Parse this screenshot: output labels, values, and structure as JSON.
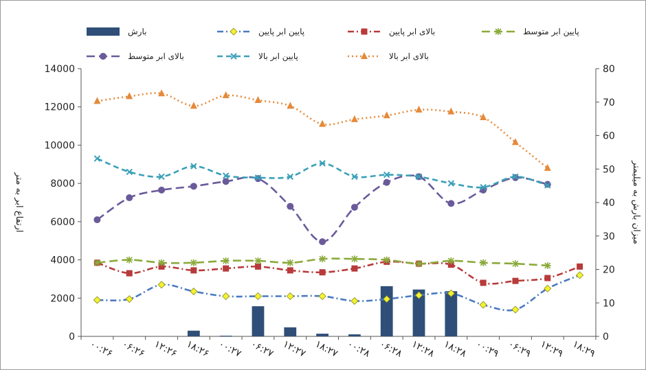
{
  "chart_data": {
    "type": "line",
    "categories": [
      "۰۰:۲۶",
      "۰۶:۲۶",
      "۱۲:۲۶",
      "۱۸:۲۶",
      "۰۰:۲۷",
      "۰۶:۲۷",
      "۱۲:۲۷",
      "۱۸:۲۷",
      "۰۰:۲۸",
      "۰۶:۲۸",
      "۱۲:۲۸",
      "۱۸:۲۸",
      "۰۰:۲۹",
      "۰۶:۲۹",
      "۱۲:۲۹",
      "۱۸:۲۹"
    ],
    "ylabel": "ارتفاع ابر به متر",
    "y2label": "میزان بارش به میلیمتر",
    "ylim": [
      0,
      14000
    ],
    "y2lim": [
      0,
      80
    ],
    "yticks": [
      "0",
      "2000",
      "4000",
      "6000",
      "8000",
      "10000",
      "12000",
      "14000"
    ],
    "y2ticks": [
      "0",
      "10",
      "20",
      "30",
      "40",
      "50",
      "60",
      "70",
      "80"
    ],
    "grid": false,
    "legend_position": "top",
    "series": [
      {
        "name": "بارش",
        "kind": "bar",
        "axis": "right",
        "color": "#2f4f78",
        "values": [
          null,
          null,
          null,
          1.7,
          0.2,
          9.0,
          2.7,
          0.8,
          0.6,
          15.0,
          14.0,
          13.5,
          null,
          null,
          null,
          null
        ]
      },
      {
        "name": "پایین ابر پایین",
        "kind": "line",
        "axis": "left",
        "color": "#4a7ac0",
        "dash": "dashdot",
        "marker": "diamond",
        "marker_fill": "#f2f230",
        "values": [
          1900,
          1950,
          2700,
          2350,
          2100,
          2100,
          2100,
          2100,
          1850,
          1950,
          2150,
          2250,
          1650,
          1400,
          2500,
          3200
        ]
      },
      {
        "name": "بالای ابر پایین",
        "kind": "line",
        "axis": "left",
        "color": "#b83a3a",
        "dash": "dashdot",
        "marker": "square",
        "values": [
          3850,
          3300,
          3650,
          3450,
          3550,
          3650,
          3450,
          3350,
          3550,
          3900,
          3800,
          3750,
          2800,
          2900,
          3050,
          3650
        ]
      },
      {
        "name": "پایین ابر متوسط",
        "kind": "line",
        "axis": "left",
        "color": "#8aaa3a",
        "dash": "longdash",
        "marker": "star",
        "values": [
          3850,
          4000,
          3850,
          3850,
          3950,
          3950,
          3850,
          4050,
          4050,
          4000,
          3800,
          3950,
          3850,
          3800,
          3700,
          null
        ]
      },
      {
        "name": "بالای ابر متوسط",
        "kind": "line",
        "axis": "left",
        "color": "#6a5a9a",
        "dash": "longdash",
        "marker": "circle",
        "values": [
          6100,
          7250,
          7650,
          7850,
          8100,
          8250,
          6800,
          4950,
          6750,
          8050,
          8350,
          6950,
          7650,
          8300,
          7950,
          null
        ]
      },
      {
        "name": "پایین ابر بالا",
        "kind": "line",
        "axis": "left",
        "color": "#3aa0b8",
        "dash": "dash",
        "marker": "x",
        "values": [
          9300,
          8600,
          8350,
          8900,
          8400,
          8300,
          8350,
          9050,
          8350,
          8450,
          8350,
          8000,
          7800,
          8350,
          7900,
          null
        ]
      },
      {
        "name": "بالای ابر بالا",
        "kind": "line",
        "axis": "left",
        "color": "#e58a3a",
        "dash": "dot",
        "marker": "triangle",
        "values": [
          12300,
          12550,
          12700,
          12050,
          12600,
          12350,
          12050,
          11100,
          11350,
          11550,
          11850,
          11750,
          11450,
          10150,
          8800,
          null
        ]
      }
    ]
  }
}
